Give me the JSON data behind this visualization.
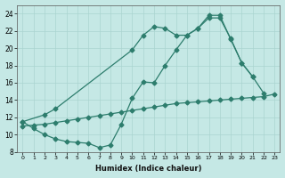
{
  "line_dip_x": [
    0,
    1,
    2,
    3,
    4,
    5,
    6,
    7,
    8,
    9,
    10,
    11,
    12,
    13,
    14,
    15,
    16,
    17,
    18,
    19,
    20,
    21,
    22
  ],
  "line_dip_y": [
    11.5,
    10.7,
    10.0,
    9.5,
    9.2,
    9.1,
    9.0,
    8.5,
    8.8,
    11.2,
    14.2,
    16.1,
    16.0,
    18.0,
    19.8,
    21.5,
    22.3,
    23.5,
    23.5,
    21.1,
    18.3,
    16.7,
    14.8
  ],
  "line_upper_x": [
    0,
    2,
    3,
    10,
    11,
    12,
    13,
    14,
    15,
    16,
    17,
    18,
    19,
    20,
    21
  ],
  "line_upper_y": [
    11.5,
    12.3,
    13.0,
    19.8,
    21.5,
    22.5,
    22.3,
    21.5,
    21.5,
    22.3,
    23.8,
    23.8,
    21.0,
    18.3,
    16.7
  ],
  "line_flat_x": [
    0,
    1,
    2,
    3,
    4,
    5,
    6,
    7,
    8,
    9,
    10,
    11,
    12,
    13,
    14,
    15,
    16,
    17,
    18,
    19,
    20,
    21,
    22,
    23
  ],
  "line_flat_y": [
    11.0,
    11.1,
    11.2,
    11.4,
    11.6,
    11.8,
    12.0,
    12.2,
    12.4,
    12.6,
    12.8,
    13.0,
    13.2,
    13.4,
    13.6,
    13.7,
    13.8,
    13.9,
    14.0,
    14.1,
    14.2,
    14.3,
    14.4,
    14.7
  ],
  "color": "#2d7d6d",
  "bg_color": "#c5e8e5",
  "grid_color": "#aad4d0",
  "xlabel": "Humidex (Indice chaleur)",
  "xlim": [
    -0.5,
    23.5
  ],
  "ylim": [
    8,
    25
  ],
  "yticks": [
    8,
    10,
    12,
    14,
    16,
    18,
    20,
    22,
    24
  ],
  "xticks": [
    0,
    1,
    2,
    3,
    4,
    5,
    6,
    7,
    8,
    9,
    10,
    11,
    12,
    13,
    14,
    15,
    16,
    17,
    18,
    19,
    20,
    21,
    22,
    23
  ]
}
